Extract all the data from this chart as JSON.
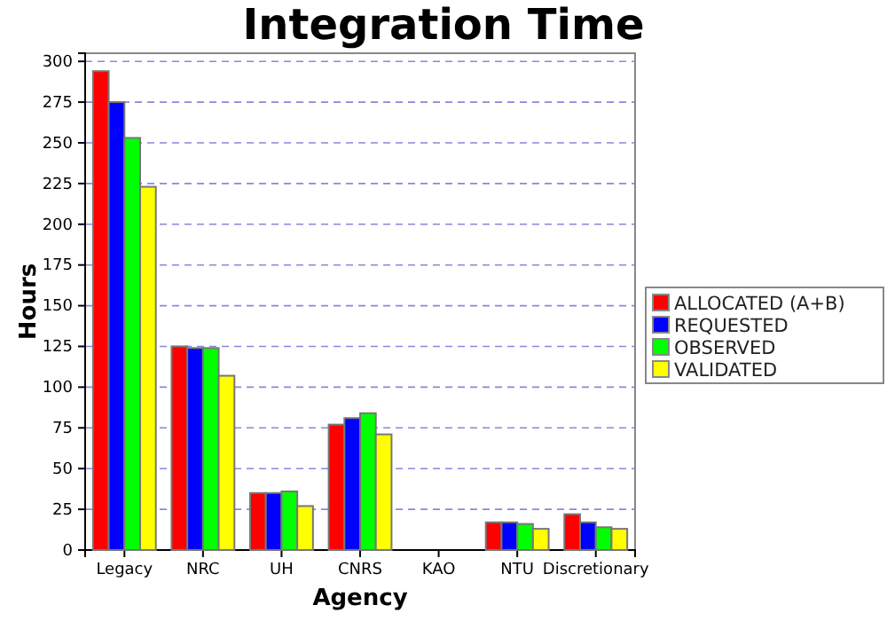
{
  "chart_data": {
    "type": "bar",
    "title": "Integration Time",
    "xlabel": "Agency",
    "ylabel": "Hours",
    "categories": [
      "Legacy",
      "NRC",
      "UH",
      "CNRS",
      "KAO",
      "NTU",
      "Discretionary"
    ],
    "series": [
      {
        "name": "ALLOCATED (A+B)",
        "color": "#ff0000",
        "values": [
          294,
          125,
          35,
          77,
          0,
          17,
          22
        ]
      },
      {
        "name": "REQUESTED",
        "color": "#0000ff",
        "values": [
          275,
          124,
          35,
          81,
          0,
          17,
          17
        ]
      },
      {
        "name": "OBSERVED",
        "color": "#00ff00",
        "values": [
          253,
          124,
          36,
          84,
          0,
          16,
          14
        ]
      },
      {
        "name": "VALIDATED",
        "color": "#ffff00",
        "values": [
          223,
          107,
          27,
          71,
          0,
          13,
          13
        ]
      }
    ],
    "ylim": [
      0,
      305
    ],
    "yticks": [
      0,
      25,
      50,
      75,
      100,
      125,
      150,
      175,
      200,
      225,
      250,
      275,
      300
    ],
    "grid": "y",
    "legend": "right"
  }
}
